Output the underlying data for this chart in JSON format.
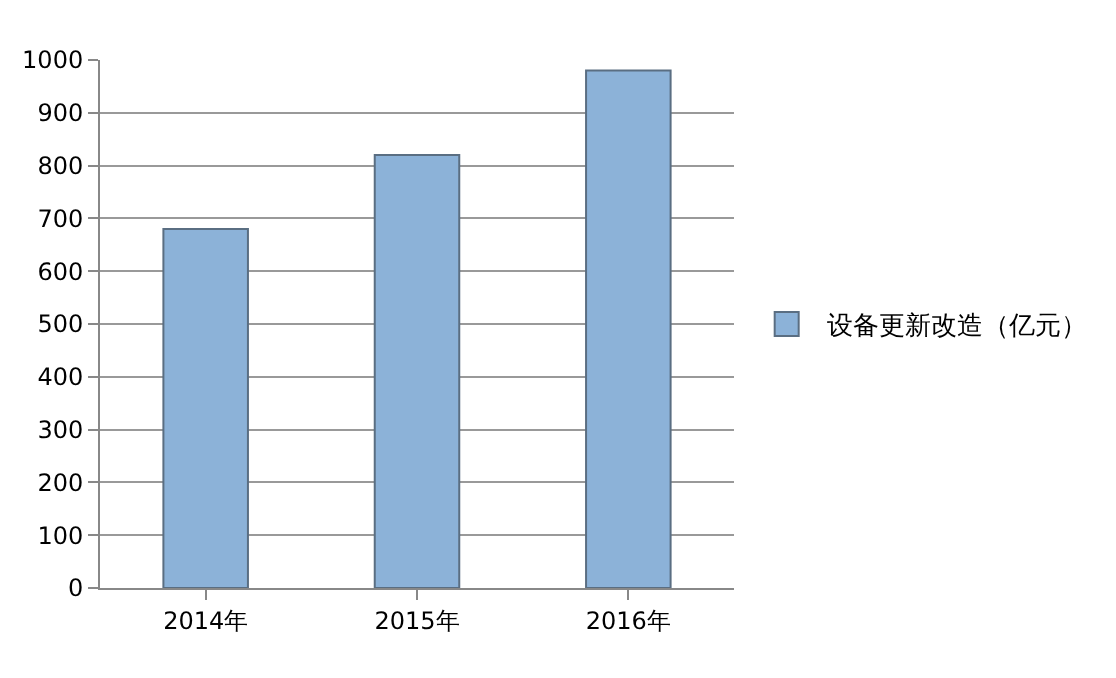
{
  "chart_data": {
    "type": "bar",
    "categories": [
      "2014年",
      "2015年",
      "2016年"
    ],
    "series": [
      {
        "name": "设备更新改造（亿元）",
        "color": "#8cb2d8",
        "values": [
          680,
          820,
          980
        ]
      }
    ],
    "ylim": [
      0,
      1000
    ],
    "yticks": [
      0,
      100,
      200,
      300,
      400,
      500,
      600,
      700,
      800,
      900,
      1000
    ],
    "grid": "y",
    "legend": "right"
  }
}
